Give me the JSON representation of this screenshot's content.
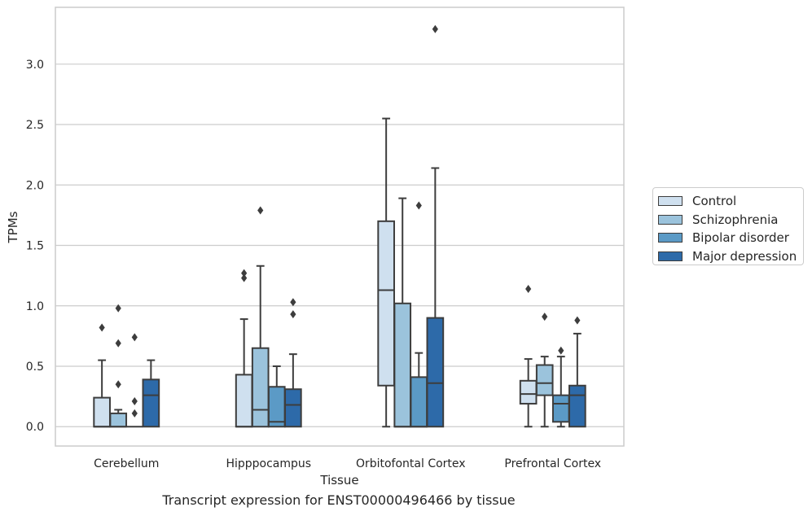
{
  "caption": "Transcript expression for ENST00000496466 by tissue",
  "chart_data": {
    "type": "box",
    "xlabel": "Tissue",
    "ylabel": "TPMs",
    "ylim": [
      -0.16,
      3.47
    ],
    "yticks": [
      0.0,
      0.5,
      1.0,
      1.5,
      2.0,
      2.5,
      3.0
    ],
    "ytick_labels": [
      "0.0",
      "0.5",
      "1.0",
      "1.5",
      "2.0",
      "2.5",
      "3.0"
    ],
    "grid": "horizontal",
    "legend_position": "right",
    "categories": [
      "Cerebellum",
      "Hipppocampus",
      "Orbitofontal Cortex",
      "Prefrontal Cortex"
    ],
    "series": [
      {
        "name": "Control",
        "color": "#cfe0ef",
        "boxes": [
          {
            "min": 0.0,
            "q1": 0.0,
            "median": 0.0,
            "q3": 0.24,
            "max": 0.55,
            "outliers": [
              0.82
            ]
          },
          {
            "min": 0.0,
            "q1": 0.0,
            "median": 0.0,
            "q3": 0.43,
            "max": 0.89,
            "outliers": [
              1.23,
              1.27
            ]
          },
          {
            "min": 0.0,
            "q1": 0.34,
            "median": 1.13,
            "q3": 1.7,
            "max": 2.55,
            "outliers": []
          },
          {
            "min": 0.0,
            "q1": 0.19,
            "median": 0.27,
            "q3": 0.38,
            "max": 0.56,
            "outliers": [
              1.14
            ]
          }
        ]
      },
      {
        "name": "Schizophrenia",
        "color": "#9bc3dc",
        "boxes": [
          {
            "min": 0.0,
            "q1": 0.0,
            "median": 0.0,
            "q3": 0.11,
            "max": 0.14,
            "outliers": [
              0.35,
              0.69,
              0.98
            ]
          },
          {
            "min": 0.0,
            "q1": 0.0,
            "median": 0.14,
            "q3": 0.65,
            "max": 1.33,
            "outliers": [
              1.79
            ]
          },
          {
            "min": 0.0,
            "q1": 0.0,
            "median": 0.0,
            "q3": 1.02,
            "max": 1.89,
            "outliers": []
          },
          {
            "min": 0.0,
            "q1": 0.26,
            "median": 0.36,
            "q3": 0.51,
            "max": 0.58,
            "outliers": [
              0.91
            ]
          }
        ]
      },
      {
        "name": "Bipolar disorder",
        "color": "#5b9ac6",
        "boxes": [
          {
            "min": 0.0,
            "q1": 0.0,
            "median": 0.0,
            "q3": 0.0,
            "max": 0.0,
            "outliers": [
              0.11,
              0.21,
              0.74
            ]
          },
          {
            "min": 0.0,
            "q1": 0.0,
            "median": 0.04,
            "q3": 0.33,
            "max": 0.5,
            "outliers": []
          },
          {
            "min": 0.0,
            "q1": 0.0,
            "median": 0.0,
            "q3": 0.41,
            "max": 0.61,
            "outliers": [
              1.83
            ]
          },
          {
            "min": 0.0,
            "q1": 0.04,
            "median": 0.19,
            "q3": 0.26,
            "max": 0.58,
            "outliers": [
              0.63
            ]
          }
        ]
      },
      {
        "name": "Major depression",
        "color": "#2d6aa9",
        "boxes": [
          {
            "min": 0.0,
            "q1": 0.0,
            "median": 0.26,
            "q3": 0.39,
            "max": 0.55,
            "outliers": []
          },
          {
            "min": 0.0,
            "q1": 0.0,
            "median": 0.18,
            "q3": 0.31,
            "max": 0.6,
            "outliers": [
              0.93,
              1.03
            ]
          },
          {
            "min": 0.0,
            "q1": 0.0,
            "median": 0.36,
            "q3": 0.9,
            "max": 2.14,
            "outliers": [
              3.29
            ]
          },
          {
            "min": 0.0,
            "q1": 0.0,
            "median": 0.26,
            "q3": 0.34,
            "max": 0.77,
            "outliers": [
              0.88
            ]
          }
        ]
      }
    ]
  }
}
